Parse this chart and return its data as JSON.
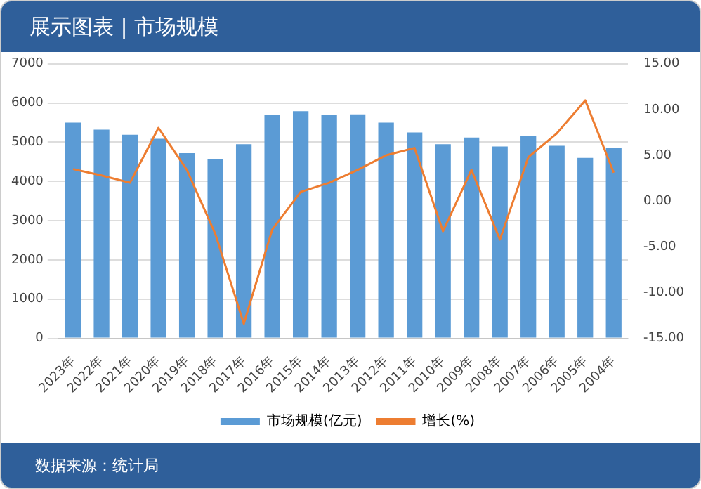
{
  "chart_data": {
    "type": "bar",
    "title": "展示图表 | 市场规模",
    "categories": [
      "2023年",
      "2022年",
      "2021年",
      "2020年",
      "2019年",
      "2018年",
      "2017年",
      "2016年",
      "2015年",
      "2014年",
      "2013年",
      "2012年",
      "2011年",
      "2010年",
      "2009年",
      "2008年",
      "2007年",
      "2006年",
      "2005年",
      "2004年"
    ],
    "series": [
      {
        "name": "市场规模(亿元)",
        "color": "#5b9bd5",
        "values": [
          5500,
          5320,
          5190,
          5090,
          4720,
          4560,
          4950,
          5690,
          5790,
          5690,
          5710,
          5500,
          5250,
          4950,
          5120,
          4890,
          5160,
          4910,
          4600,
          4850
        ]
      },
      {
        "name": "增长(%)",
        "type": "line",
        "axis": "y2",
        "color": "#ed7d31",
        "values": [
          3.5,
          2.8,
          2.0,
          8.0,
          3.4,
          -3.6,
          -13.4,
          -3.1,
          1.0,
          2.0,
          3.4,
          5.0,
          5.8,
          -3.3,
          3.4,
          -4.2,
          4.8,
          7.4,
          11.0,
          3.1
        ]
      }
    ],
    "ylim": [
      0,
      7000
    ],
    "yticks": [
      0,
      1000,
      2000,
      3000,
      4000,
      5000,
      6000,
      7000
    ],
    "y2lim": [
      -15,
      15
    ],
    "y2ticks": [
      {
        "value": -15,
        "label": "-15.00"
      },
      {
        "value": -10,
        "label": "-10.00"
      },
      {
        "value": -5,
        "label": "-5.00"
      },
      {
        "value": 0,
        "label": "0.00"
      },
      {
        "value": 5,
        "label": "5.00"
      },
      {
        "value": 10,
        "label": "10.00"
      },
      {
        "value": 15,
        "label": "15.00"
      }
    ],
    "grid": "y",
    "legend": "bottom",
    "marker": "none",
    "line_style": "solid",
    "annotations": [
      "数据来源：统计局"
    ]
  }
}
